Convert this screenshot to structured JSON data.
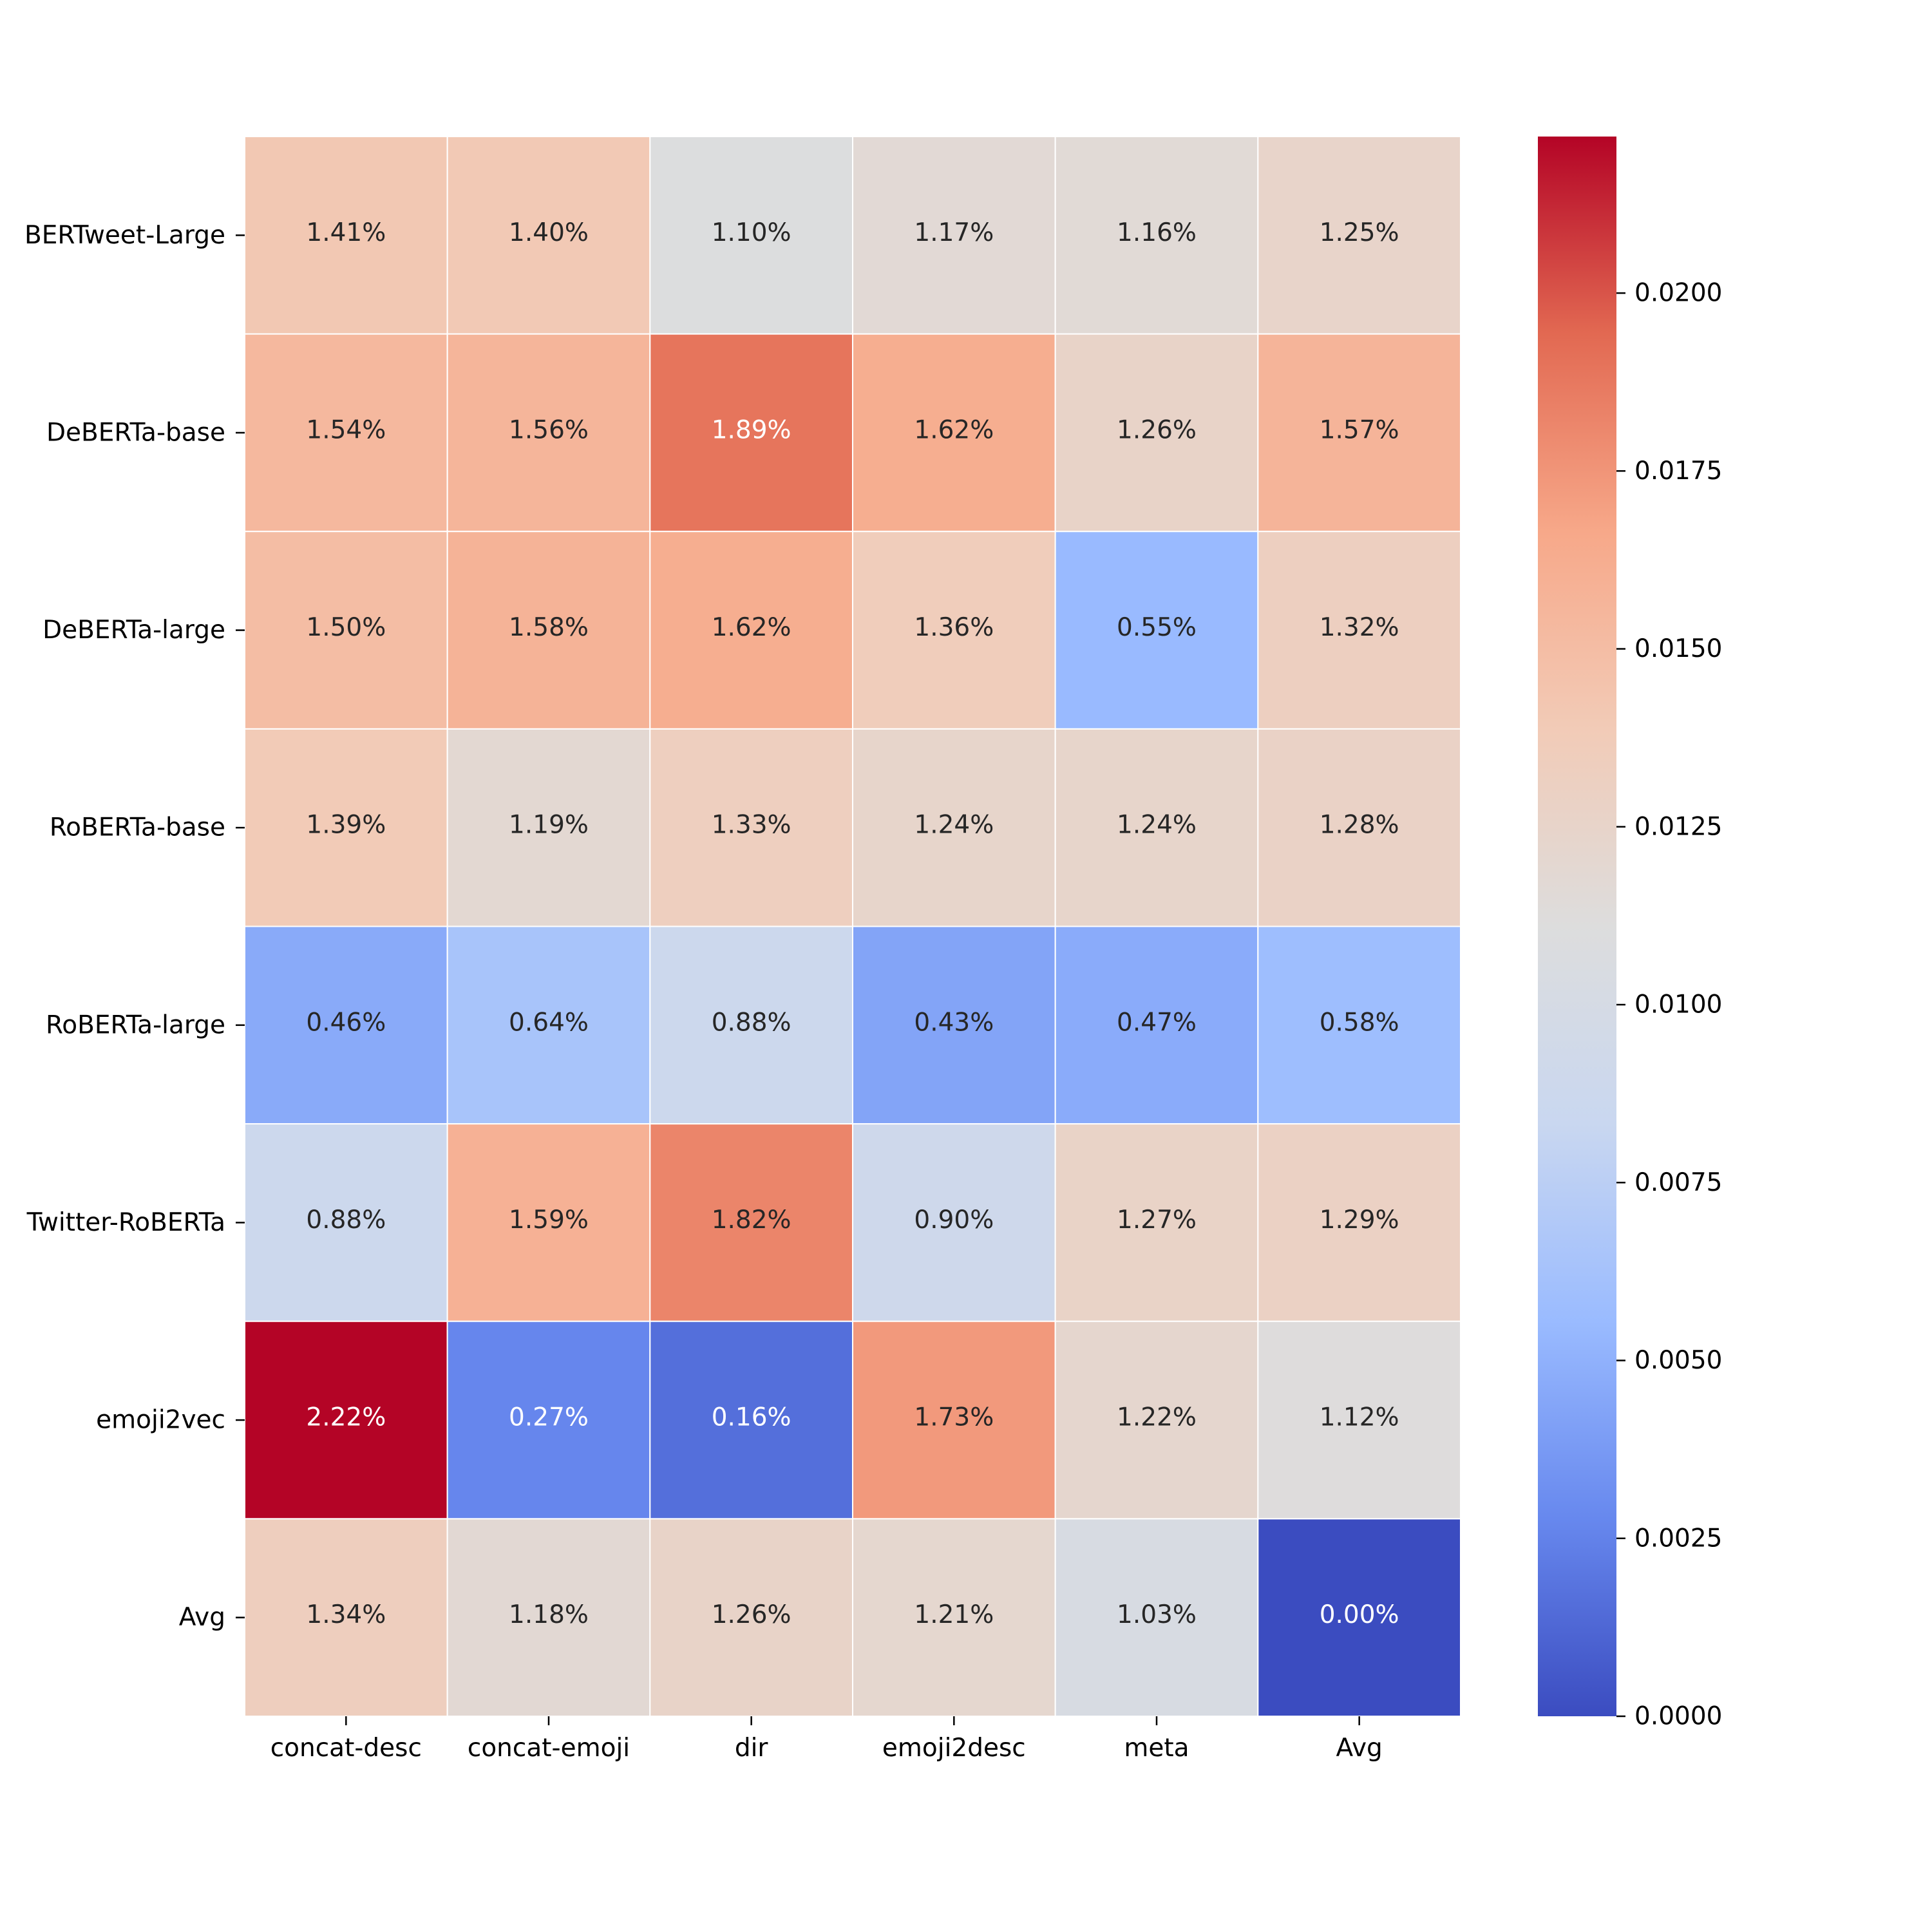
{
  "chart_data": {
    "type": "heatmap",
    "title": "",
    "xlabel": "",
    "ylabel": "",
    "columns": [
      "concat-desc",
      "concat-emoji",
      "dir",
      "emoji2desc",
      "meta",
      "Avg"
    ],
    "rows": [
      "BERTweet-Large",
      "DeBERTa-base",
      "DeBERTa-large",
      "RoBERTa-base",
      "RoBERTa-large",
      "Twitter-RoBERTa",
      "emoji2vec",
      "Avg"
    ],
    "values": [
      [
        0.0141,
        0.014,
        0.011,
        0.0117,
        0.0116,
        0.0125
      ],
      [
        0.0154,
        0.0156,
        0.0189,
        0.0162,
        0.0126,
        0.0157
      ],
      [
        0.015,
        0.0158,
        0.0162,
        0.0136,
        0.0055,
        0.0132
      ],
      [
        0.0139,
        0.0119,
        0.0133,
        0.0124,
        0.0124,
        0.0128
      ],
      [
        0.0046,
        0.0064,
        0.0088,
        0.0043,
        0.0047,
        0.0058
      ],
      [
        0.0088,
        0.0159,
        0.0182,
        0.009,
        0.0127,
        0.0129
      ],
      [
        0.0222,
        0.0027,
        0.0016,
        0.0173,
        0.0122,
        0.0112
      ],
      [
        0.0134,
        0.0118,
        0.0126,
        0.0121,
        0.0103,
        0.0
      ]
    ],
    "cell_labels": [
      [
        "1.41%",
        "1.40%",
        "1.10%",
        "1.17%",
        "1.16%",
        "1.25%"
      ],
      [
        "1.54%",
        "1.56%",
        "1.89%",
        "1.62%",
        "1.26%",
        "1.57%"
      ],
      [
        "1.50%",
        "1.58%",
        "1.62%",
        "1.36%",
        "0.55%",
        "1.32%"
      ],
      [
        "1.39%",
        "1.19%",
        "1.33%",
        "1.24%",
        "1.24%",
        "1.28%"
      ],
      [
        "0.46%",
        "0.64%",
        "0.88%",
        "0.43%",
        "0.47%",
        "0.58%"
      ],
      [
        "0.88%",
        "1.59%",
        "1.82%",
        "0.90%",
        "1.27%",
        "1.29%"
      ],
      [
        "2.22%",
        "0.27%",
        "0.16%",
        "1.73%",
        "1.22%",
        "1.12%"
      ],
      [
        "1.34%",
        "1.18%",
        "1.26%",
        "1.21%",
        "1.03%",
        "0.00%"
      ]
    ],
    "colormap": "coolwarm",
    "colormap_stops": [
      "#3b4cc0",
      "#6788ee",
      "#9abbff",
      "#c9d7f0",
      "#dddddd",
      "#f2cbb7",
      "#f7a889",
      "#e26952",
      "#b40426"
    ],
    "vmin": 0.0,
    "vmax": 0.0222,
    "colorbar": {
      "ticks": [
        0.0,
        0.0025,
        0.005,
        0.0075,
        0.01,
        0.0125,
        0.015,
        0.0175,
        0.02
      ],
      "tick_labels": [
        "0.0000",
        "0.0025",
        "0.0050",
        "0.0075",
        "0.0100",
        "0.0125",
        "0.0150",
        "0.0175",
        "0.0200"
      ]
    },
    "grid_line_color": "#ffffff",
    "text_colors": {
      "dark": "#262626",
      "light": "#ffffff"
    }
  }
}
